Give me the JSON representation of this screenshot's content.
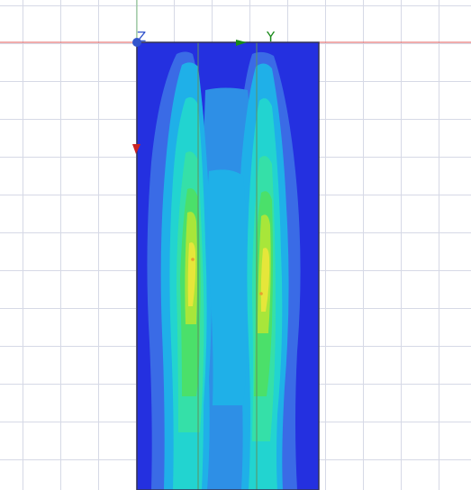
{
  "viewport": {
    "axes": {
      "z": {
        "label": "Z",
        "color": "#3355cc"
      },
      "y": {
        "label": "Y",
        "color": "#1a8a1a"
      },
      "x_marker_color": "#cc2222"
    },
    "colors": {
      "grid": "#d6d9e6",
      "ref_line_red": "#e05a5a",
      "ref_line_green": "#7fbf7f",
      "band_dark_blue": "#2430e0",
      "band_blue": "#3a6be6",
      "band_light_blue": "#2e8fe6",
      "band_cyan_blue": "#1fb0e8",
      "band_cyan": "#22d4d0",
      "band_aqua": "#35e0a8",
      "band_green": "#4be06a",
      "band_yellow_green": "#a8e63a",
      "band_yellow": "#e6e63a",
      "band_orange": "#e6a030",
      "outline": "#333355"
    }
  }
}
